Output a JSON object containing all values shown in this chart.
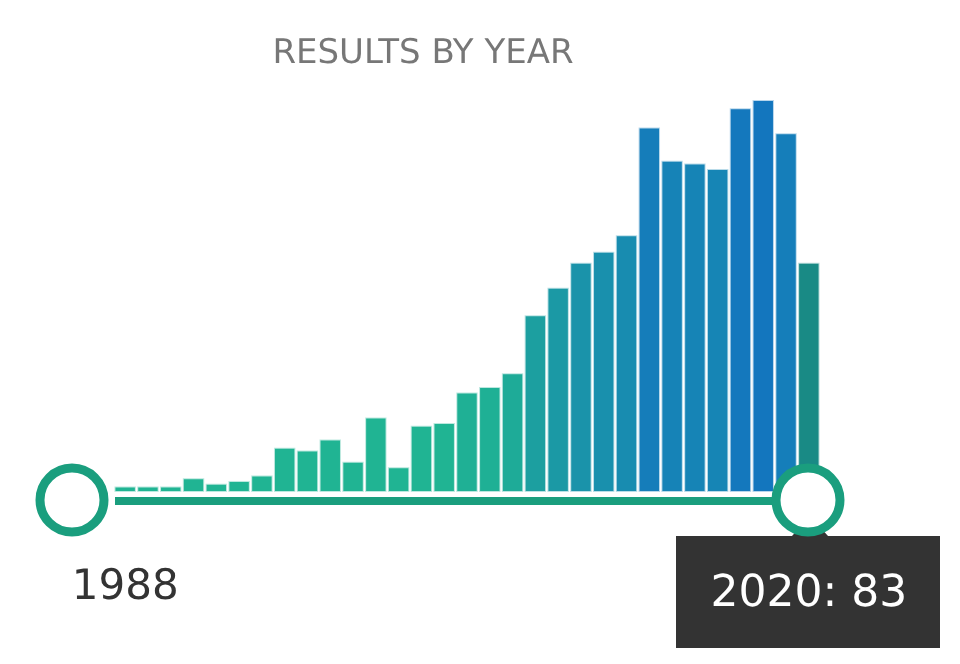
{
  "chart_data": {
    "type": "bar",
    "title": "RESULTS BY YEAR",
    "categories": [
      "1988",
      null,
      null,
      null,
      null,
      null,
      null,
      null,
      null,
      null,
      null,
      null,
      null,
      null,
      null,
      null,
      null,
      null,
      null,
      null,
      null,
      null,
      null,
      null,
      null,
      null,
      null,
      null,
      null,
      null,
      null
    ],
    "values": [
      2,
      2,
      2,
      5,
      3,
      4,
      6,
      16,
      15,
      19,
      11,
      27,
      9,
      24,
      25,
      36,
      38,
      43,
      64,
      74,
      83,
      87,
      93,
      132,
      120,
      119,
      117,
      139,
      142,
      130,
      83
    ],
    "colors": [
      "#20b493",
      "#20b493",
      "#20b493",
      "#20b493",
      "#20b493",
      "#20b493",
      "#20b493",
      "#20b493",
      "#20b493",
      "#20b493",
      "#20b493",
      "#20b493",
      "#20b493",
      "#20b493",
      "#20b493",
      "#1fb095",
      "#1fb095",
      "#1eab98",
      "#1c9fa0",
      "#1b99a5",
      "#1a93aa",
      "#1990ad",
      "#188cb0",
      "#157dba",
      "#1683b7",
      "#1684b6",
      "#1685b5",
      "#1478bd",
      "#1376be",
      "#157eba",
      "#198a85"
    ],
    "value_labels": [
      null,
      null,
      null,
      null,
      null,
      null,
      null,
      null,
      null,
      null,
      null,
      null,
      null,
      null,
      null,
      null,
      null,
      null,
      null,
      null,
      null,
      null,
      null,
      null,
      null,
      null,
      null,
      null,
      null,
      null,
      "2020: 83"
    ]
  }
}
